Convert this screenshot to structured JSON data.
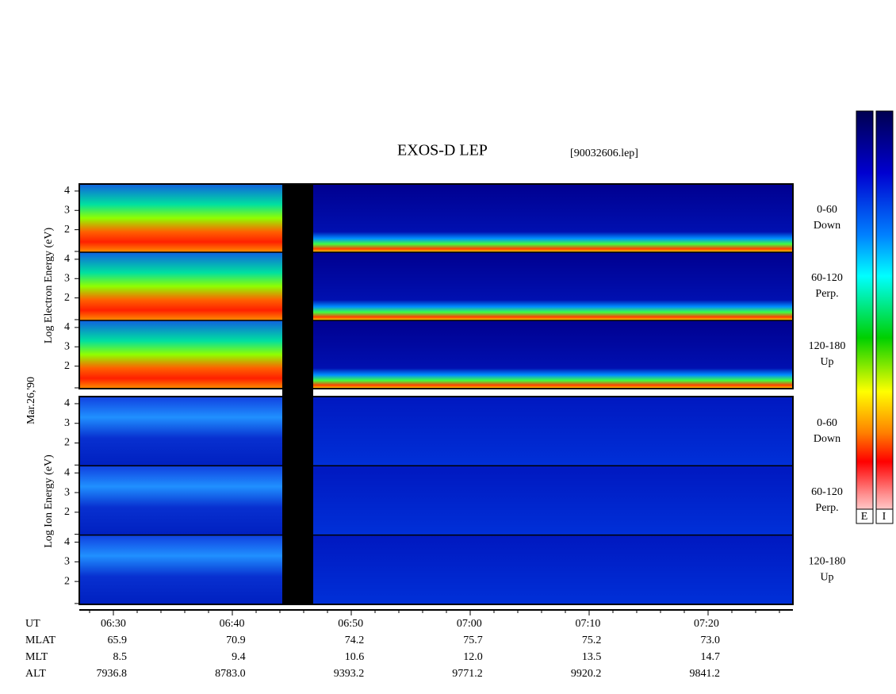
{
  "title": "EXOS-D LEP",
  "file": "[90032606.lep]",
  "date": "Mar.26,'90",
  "yticks": [
    2,
    3,
    4
  ],
  "electron": {
    "ylabel": "Log  Electron  Energy (eV)",
    "panels": [
      {
        "angle": "0-60",
        "direction": "Down"
      },
      {
        "angle": "60-120",
        "direction": "Perp."
      },
      {
        "angle": "120-180",
        "direction": "Up"
      }
    ]
  },
  "ion": {
    "ylabel": "Log  Ion  Energy (eV)",
    "panels": [
      {
        "angle": "0-60",
        "direction": "Down"
      },
      {
        "angle": "60-120",
        "direction": "Perp."
      },
      {
        "angle": "120-180",
        "direction": "Up"
      }
    ]
  },
  "colorbar": {
    "labels": [
      "E",
      "I"
    ]
  },
  "time_axis": {
    "rows": [
      {
        "name": "UT",
        "values": [
          "06:30",
          "06:40",
          "06:50",
          "07:00",
          "07:10",
          "07:20"
        ]
      },
      {
        "name": "MLAT",
        "values": [
          "65.9",
          "70.9",
          "74.2",
          "75.7",
          "75.2",
          "73.0"
        ]
      },
      {
        "name": "MLT",
        "values": [
          "8.5",
          "9.4",
          "10.6",
          "12.0",
          "13.5",
          "14.7"
        ]
      },
      {
        "name": "ALT",
        "values": [
          "7936.8",
          "8783.0",
          "9393.2",
          "9771.2",
          "9920.2",
          "9841.2"
        ]
      }
    ]
  }
}
